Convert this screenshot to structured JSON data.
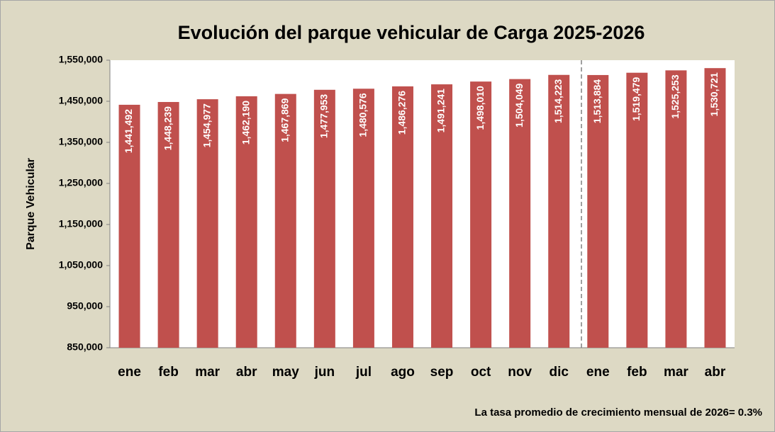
{
  "chart_data": {
    "type": "bar",
    "title": "Evolución del parque vehicular de Carga 2025-2026",
    "y_label": "Parque Vehicular",
    "annotation": "La tasa promedio de crecimiento mensual de 2026= 0.3%",
    "categories": [
      "ene",
      "feb",
      "mar",
      "abr",
      "may",
      "jun",
      "jul",
      "ago",
      "sep",
      "oct",
      "nov",
      "dic",
      "ene",
      "feb",
      "mar",
      "abr"
    ],
    "values": [
      1441492,
      1448239,
      1454977,
      1462190,
      1467869,
      1477953,
      1480576,
      1486276,
      1491241,
      1498010,
      1504049,
      1514223,
      1513884,
      1519479,
      1525253,
      1530721
    ],
    "value_labels": [
      "1,441,492",
      "1,448,239",
      "1,454,977",
      "1,462,190",
      "1,467,869",
      "1,477,953",
      "1,480,576",
      "1,486,276",
      "1,491,241",
      "1,498,010",
      "1,504,049",
      "1,514,223",
      "1,513,884",
      "1,519,479",
      "1,525,253",
      "1,530,721"
    ],
    "color": "#c0504d",
    "ylim": [
      850000,
      1550000
    ],
    "yticks": [
      {
        "value": 850000,
        "label": "850,000"
      },
      {
        "value": 950000,
        "label": "950,000"
      },
      {
        "value": 1050000,
        "label": "1,050,000"
      },
      {
        "value": 1150000,
        "label": "1,150,000"
      },
      {
        "value": 1250000,
        "label": "1,250,000"
      },
      {
        "value": 1350000,
        "label": "1,350,000"
      },
      {
        "value": 1450000,
        "label": "1,450,000"
      },
      {
        "value": 1550000,
        "label": "1,550,000"
      }
    ],
    "grid": false
  }
}
